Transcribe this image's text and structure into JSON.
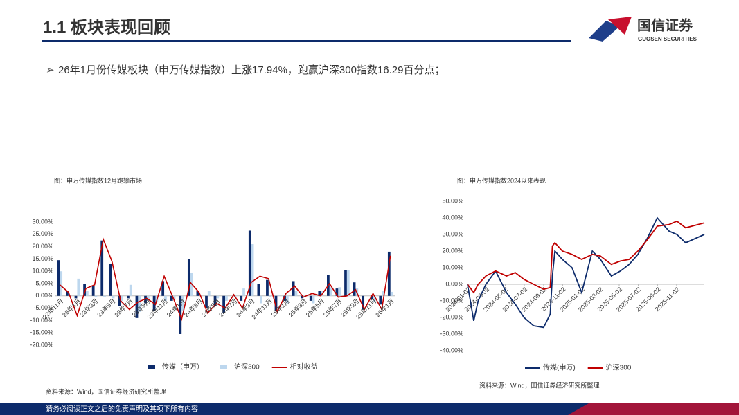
{
  "header": {
    "title": "1.1 板块表现回顾",
    "logo": "国信证券",
    "logo_en": "GUOSEN SECURITIES"
  },
  "bullet": "26年1月份传媒板块（申万传媒指数）上涨17.94%，跑赢沪深300指数16.29百分点；",
  "footer": "请务必阅读正文之后的免责声明及其项下所有内容",
  "chart_data": [
    {
      "type": "bar",
      "title": "图：申万传媒指数12月跑输市场",
      "source": "资料来源：Wind，国信证券经济研究所整理",
      "categories": [
        "22年11月",
        null,
        "23年1月",
        null,
        "23年3月",
        null,
        "23年5月",
        null,
        "23年7月",
        null,
        "23年9月",
        null,
        "23年11月",
        null,
        "24年1月",
        null,
        "24年3月",
        null,
        "24年5月",
        null,
        "24年7月",
        null,
        "24年9月",
        null,
        "24年11月",
        null,
        "25年1月",
        null,
        "25年3月",
        null,
        "25年5月",
        null,
        "25年7月",
        null,
        "25年9月",
        null,
        "25年11月",
        null,
        "26年1月"
      ],
      "series": [
        {
          "name": "传媒（申万）",
          "color": "#0d2b6b",
          "values": [
            14.5,
            2,
            -1,
            5,
            4,
            22.5,
            13,
            -4,
            -1,
            -9,
            -3,
            -6,
            6,
            -2,
            -15.5,
            15,
            2,
            -5,
            -4,
            -7,
            0,
            -2,
            26.5,
            5,
            6.5,
            -6,
            -2,
            6,
            -1,
            -2,
            2,
            8.5,
            3,
            10.5,
            5.5,
            -5.5,
            -1.5,
            -3.5,
            17.94
          ]
        },
        {
          "name": "沪深300",
          "color": "#bdd7ee",
          "values": [
            10,
            0.5,
            7,
            2,
            -0.5,
            -0.5,
            -1,
            -2,
            4.5,
            -6.5,
            -2,
            -2.5,
            -2,
            -1.5,
            -6,
            9.5,
            0.5,
            2,
            -1,
            -2,
            -0.5,
            3,
            21,
            -3,
            -0.5,
            0.5,
            -3,
            2,
            -0.5,
            -3,
            2,
            3.5,
            3.5,
            10.5,
            3,
            0,
            -2.5,
            2,
            1.65
          ]
        },
        {
          "name": "相对收益",
          "color": "#c00000",
          "type": "line",
          "values": [
            4.5,
            1.5,
            -8,
            3,
            4.5,
            23,
            14,
            -2,
            -5.5,
            -2.5,
            -1,
            -3.5,
            8,
            -0.5,
            -9.5,
            5.5,
            1.5,
            -7,
            -3,
            -5,
            0.5,
            -5,
            5.5,
            8,
            7,
            -6.5,
            1,
            4,
            -0.5,
            1,
            0,
            5,
            -0.5,
            0,
            2.5,
            -5.5,
            1,
            -5.5,
            16.29
          ]
        }
      ],
      "ylim": [
        -20,
        30
      ],
      "yticks": [
        {
          "value": -20,
          "label": "-20.00%"
        },
        {
          "value": -15,
          "label": "-15.00%"
        },
        {
          "value": -10,
          "label": "-10.00%"
        },
        {
          "value": -5,
          "label": "-5.00%"
        },
        {
          "value": 0,
          "label": "0.00%"
        },
        {
          "value": 5,
          "label": "5.00%"
        },
        {
          "value": 10,
          "label": "10.00%"
        },
        {
          "value": 15,
          "label": "15.00%"
        },
        {
          "value": 20,
          "label": "20.00%"
        },
        {
          "value": 25,
          "label": "25.00%"
        },
        {
          "value": 30,
          "label": "30.00%"
        }
      ],
      "grid": false,
      "legend": "bottom"
    },
    {
      "type": "line",
      "title": "图：申万传媒指数2024以来表现",
      "source": "资料来源：Wind，国信证券经济研究所整理",
      "x": [
        "2024-01-02",
        "2024-01-22",
        "2024-02-05",
        "2024-03-01",
        "2024-04-01",
        "2024-05-06",
        "2024-06-03",
        "2024-07-01",
        "2024-08-01",
        "2024-09-02",
        "2024-09-23",
        "2024-09-30",
        "2024-10-08",
        "2024-11-01",
        "2024-12-02",
        "2025-01-02",
        "2025-02-05",
        "2025-03-03",
        "2025-04-07",
        "2025-05-06",
        "2025-06-03",
        "2025-07-01",
        "2025-08-01",
        "2025-09-01",
        "2025-10-09",
        "2025-11-03",
        "2025-12-01",
        "2026-01-30"
      ],
      "series": [
        {
          "name": "传媒(申万)",
          "color": "#0d2b6b",
          "values": [
            0,
            -22,
            -10,
            0,
            8,
            -5,
            -12,
            -20,
            -25,
            -26,
            -18,
            5,
            20,
            15,
            10,
            -5,
            20,
            15,
            5,
            8,
            12,
            18,
            28,
            40,
            32,
            30,
            25,
            30
          ]
        },
        {
          "name": "沪深300",
          "color": "#c00000",
          "values": [
            0,
            -5,
            0,
            5,
            8,
            5,
            7,
            3,
            0,
            -3,
            -2,
            23,
            25,
            20,
            18,
            15,
            18,
            17,
            12,
            14,
            15,
            20,
            27,
            35,
            36,
            38,
            34,
            37
          ]
        }
      ],
      "xlim": [
        "2024-01-02",
        "2026-01-30"
      ],
      "xticks": [
        "2024-01-02",
        "2024-03-02",
        "2024-05-02",
        "2024-07-02",
        "2024-09-02",
        "2024-11-02",
        "2025-01-02",
        "2025-03-02",
        "2025-05-02",
        "2025-07-02",
        "2025-09-02",
        "2025-11-02"
      ],
      "ylim": [
        -40,
        50
      ],
      "yticks": [
        {
          "value": -40,
          "label": "-40.00%"
        },
        {
          "value": -30,
          "label": "-30.00%"
        },
        {
          "value": -20,
          "label": "-20.00%"
        },
        {
          "value": -10,
          "label": "-10.00%"
        },
        {
          "value": 0,
          "label": "0.00%"
        },
        {
          "value": 10,
          "label": "10.00%"
        },
        {
          "value": 20,
          "label": "20.00%"
        },
        {
          "value": 30,
          "label": "30.00%"
        },
        {
          "value": 40,
          "label": "40.00%"
        },
        {
          "value": 50,
          "label": "50.00%"
        }
      ],
      "grid": false,
      "legend": "bottom"
    }
  ]
}
